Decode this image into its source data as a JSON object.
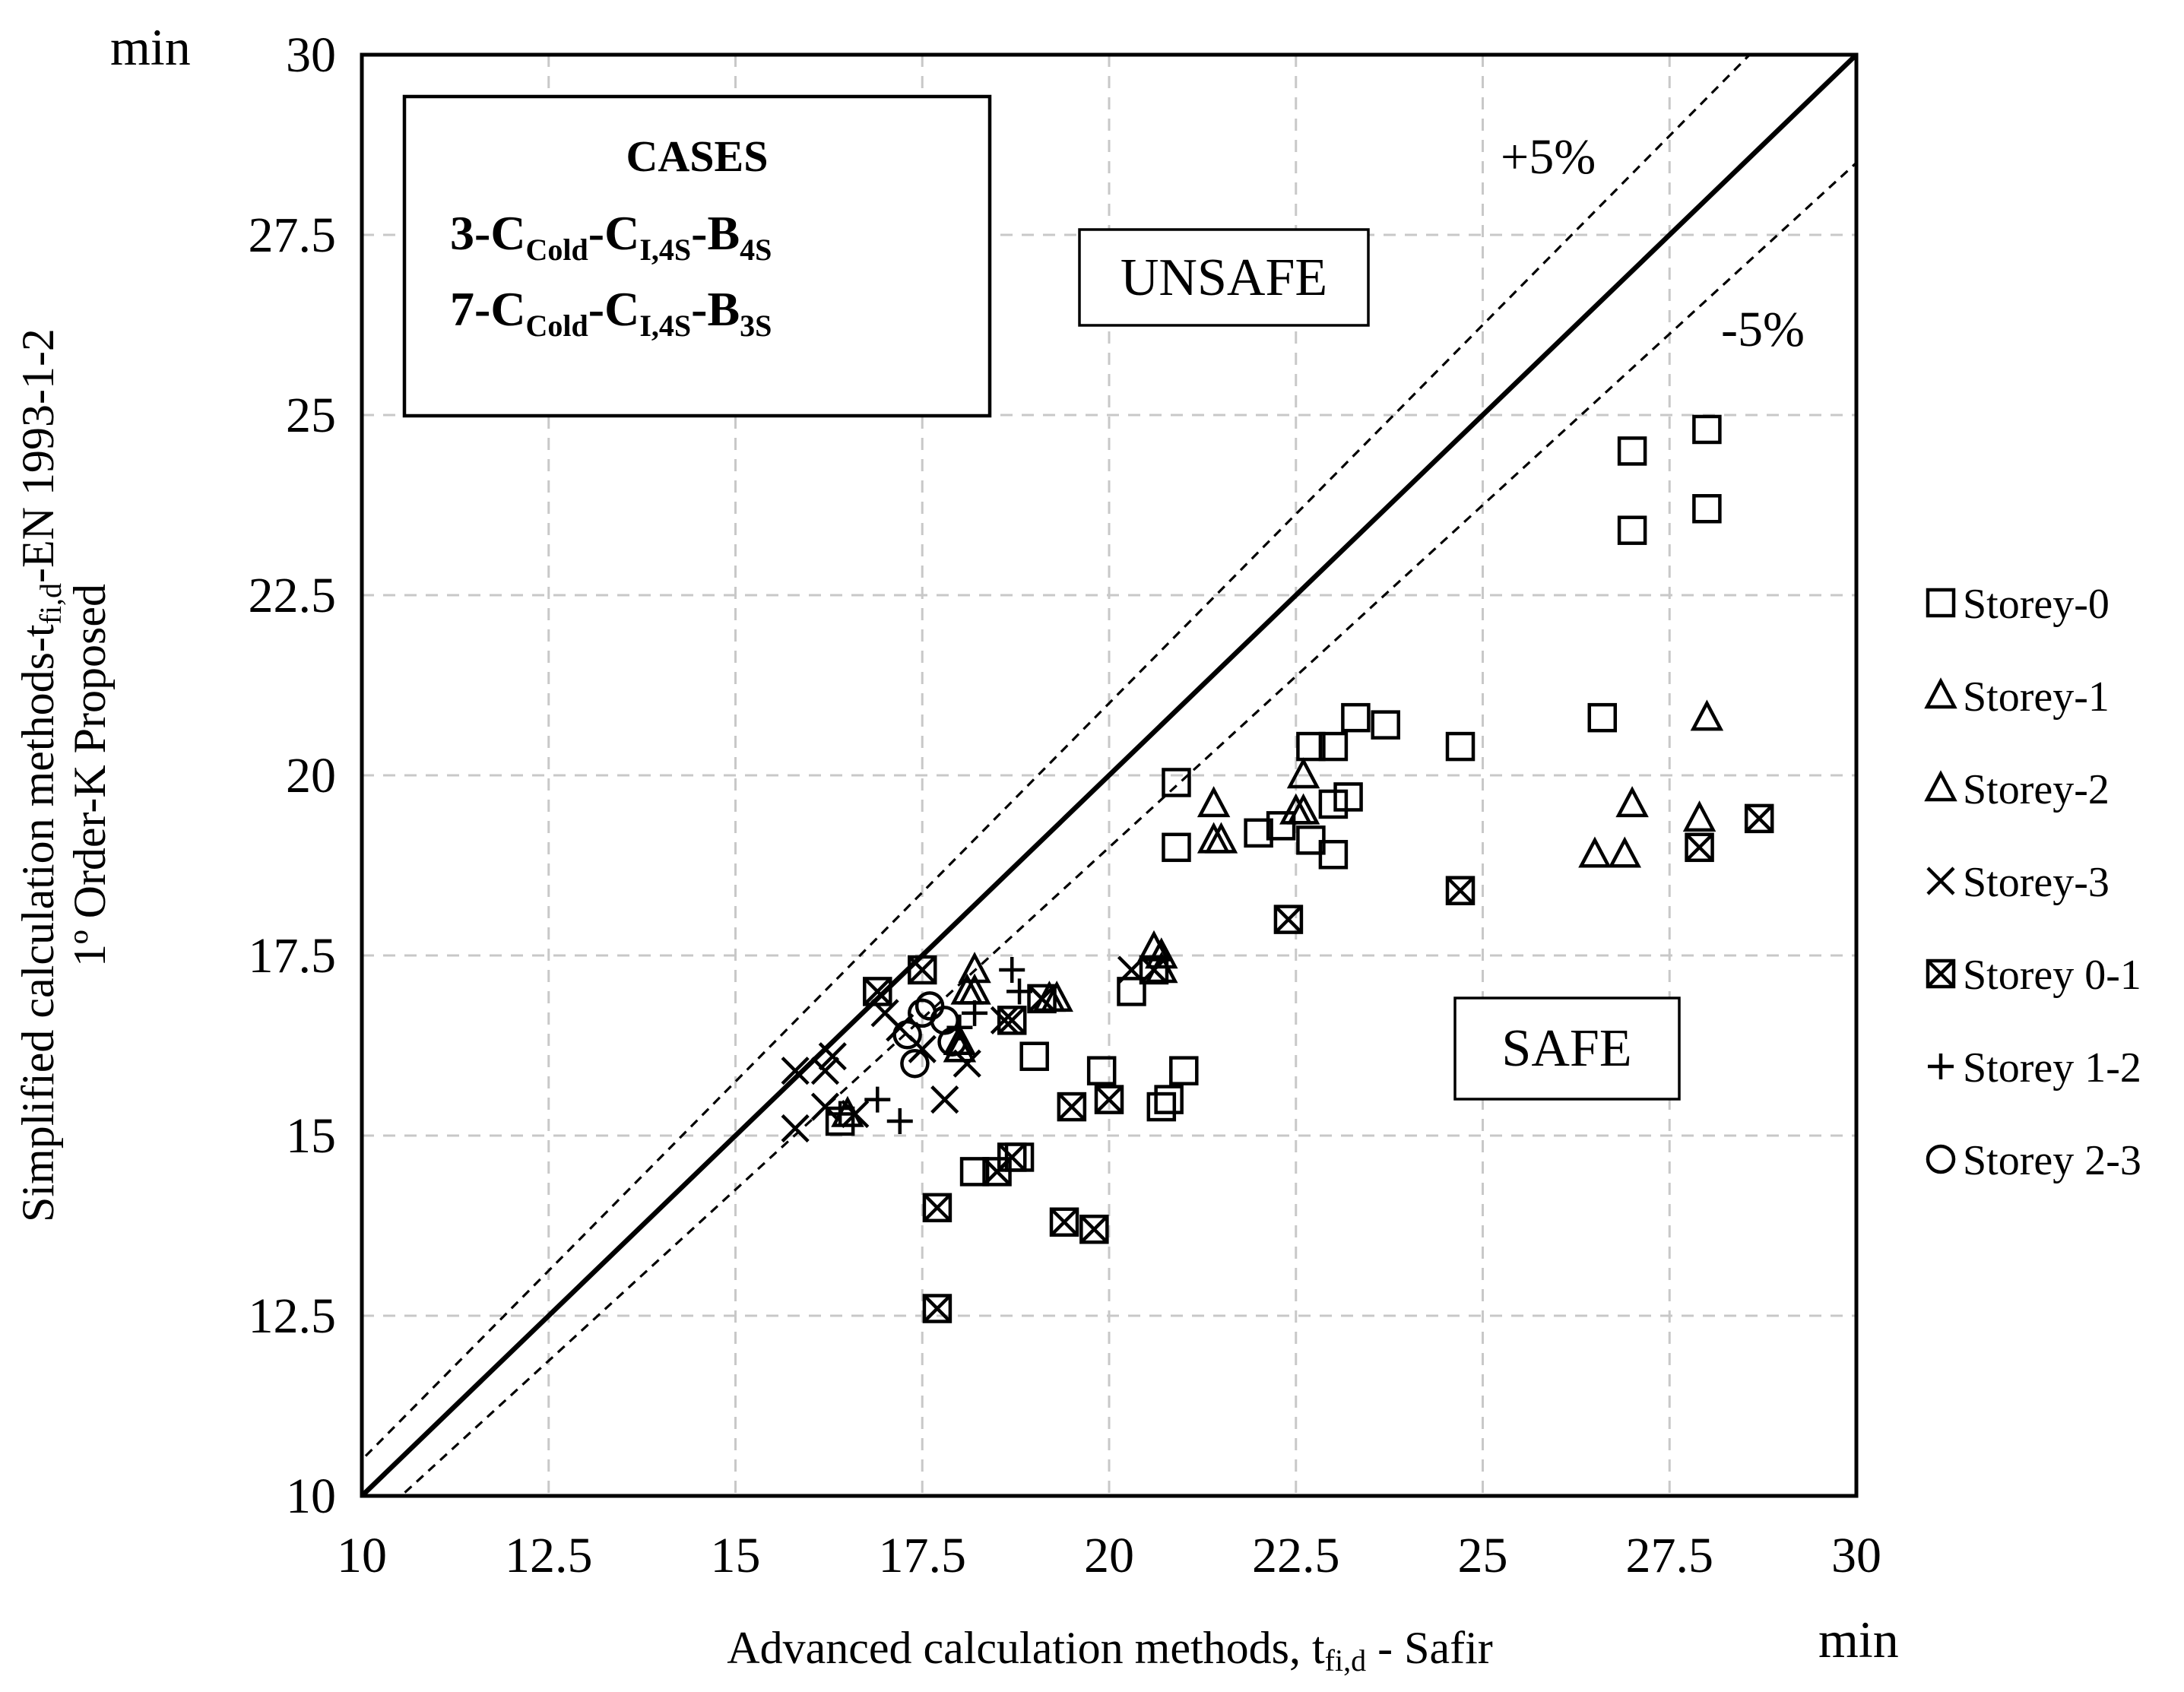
{
  "chart_data": {
    "type": "scatter",
    "title": "",
    "y_unit": "min",
    "x_unit": "min",
    "xlabel": "Advanced calculation methods, t",
    "xlabel_sub": "fi,d",
    "xlabel_suffix": " - Safir",
    "ylabel_line1_prefix": "Simplified calculation methods-t",
    "ylabel_line1_sub": "fi,d",
    "ylabel_line1_suffix": "-EN 1993-1-2",
    "ylabel_line2": "1º Order-K Proposed",
    "xlim": [
      10,
      30
    ],
    "ylim": [
      10,
      30
    ],
    "x_ticks": [
      "10",
      "12.5",
      "15",
      "17.5",
      "20",
      "22.5",
      "25",
      "27.5",
      "30"
    ],
    "y_ticks": [
      "10",
      "12.5",
      "15",
      "17.5",
      "20",
      "22.5",
      "25",
      "27.5",
      "30"
    ],
    "grid": true,
    "reference_lines": [
      {
        "label": "",
        "style": "solid",
        "slope": 1.0
      },
      {
        "label": "+5%",
        "style": "dashed",
        "slope": 1.05
      },
      {
        "label": "-5%",
        "style": "dashed",
        "slope": 0.95
      }
    ],
    "regions": {
      "upper": "UNSAFE",
      "lower": "SAFE"
    },
    "cases_box": {
      "title": "CASES",
      "lines": [
        {
          "p1": "3-C",
          "s1": "Cold",
          "p2": "-C",
          "s2": "I,4S",
          "p3": "-B",
          "s3": "4S"
        },
        {
          "p1": "7-C",
          "s1": "Cold",
          "p2": "-C",
          "s2": "I,4S",
          "p3": "-B",
          "s3": "3S"
        }
      ]
    },
    "series": [
      {
        "name": "Storey-0",
        "marker": "square",
        "points": [
          [
            28.0,
            24.8
          ],
          [
            27.0,
            24.5
          ],
          [
            28.0,
            23.7
          ],
          [
            27.0,
            23.4
          ],
          [
            23.3,
            20.8
          ],
          [
            23.7,
            20.7
          ],
          [
            26.6,
            20.8
          ],
          [
            22.7,
            20.4
          ],
          [
            23.0,
            20.4
          ],
          [
            24.7,
            20.4
          ],
          [
            20.9,
            19.9
          ],
          [
            23.2,
            19.7
          ],
          [
            23.0,
            19.6
          ],
          [
            22.0,
            19.2
          ],
          [
            22.3,
            19.3
          ],
          [
            22.7,
            19.1
          ],
          [
            20.9,
            19.0
          ],
          [
            23.0,
            18.9
          ],
          [
            20.3,
            17.0
          ],
          [
            19.0,
            16.1
          ],
          [
            19.9,
            15.9
          ],
          [
            21.0,
            15.9
          ],
          [
            20.8,
            15.5
          ],
          [
            20.7,
            15.4
          ],
          [
            18.8,
            14.7
          ],
          [
            18.2,
            14.5
          ],
          [
            16.4,
            15.2
          ]
        ]
      },
      {
        "name": "Storey-1",
        "marker": "triangle",
        "points": [
          [
            28.0,
            20.8
          ],
          [
            27.0,
            19.6
          ],
          [
            27.9,
            19.4
          ],
          [
            26.9,
            18.9
          ],
          [
            26.5,
            18.9
          ],
          [
            21.4,
            19.6
          ],
          [
            21.4,
            19.1
          ],
          [
            22.6,
            20.0
          ],
          [
            22.6,
            19.5
          ],
          [
            20.6,
            17.6
          ],
          [
            20.7,
            17.3
          ],
          [
            19.3,
            16.9
          ],
          [
            18.2,
            17.3
          ],
          [
            18.2,
            17.0
          ],
          [
            18.0,
            16.3
          ],
          [
            16.5,
            15.3
          ]
        ]
      },
      {
        "name": "Storey-2",
        "marker": "triangle",
        "points": [
          [
            22.5,
            19.5
          ],
          [
            21.5,
            19.1
          ],
          [
            20.7,
            17.5
          ],
          [
            19.2,
            16.9
          ],
          [
            18.1,
            17.0
          ],
          [
            18.0,
            16.2
          ]
        ]
      },
      {
        "name": "Storey-3",
        "marker": "x",
        "points": [
          [
            15.8,
            15.9
          ],
          [
            15.8,
            15.1
          ],
          [
            16.2,
            15.9
          ],
          [
            16.3,
            16.1
          ],
          [
            16.2,
            15.4
          ],
          [
            16.6,
            15.3
          ],
          [
            17.0,
            16.7
          ],
          [
            17.2,
            16.5
          ],
          [
            17.5,
            16.2
          ],
          [
            17.8,
            15.5
          ],
          [
            18.1,
            16.0
          ],
          [
            18.6,
            16.6
          ],
          [
            19.1,
            16.9
          ],
          [
            20.3,
            17.3
          ]
        ]
      },
      {
        "name": "Storey 0-1",
        "marker": "x-square",
        "points": [
          [
            28.7,
            19.4
          ],
          [
            27.9,
            19.0
          ],
          [
            24.7,
            18.4
          ],
          [
            22.4,
            18.0
          ],
          [
            20.6,
            17.3
          ],
          [
            19.1,
            16.9
          ],
          [
            18.7,
            16.6
          ],
          [
            16.9,
            17.0
          ],
          [
            17.5,
            17.3
          ],
          [
            19.5,
            15.4
          ],
          [
            20.0,
            15.5
          ],
          [
            18.5,
            14.5
          ],
          [
            18.7,
            14.7
          ],
          [
            17.7,
            14.0
          ],
          [
            19.4,
            13.8
          ],
          [
            19.8,
            13.7
          ],
          [
            17.7,
            12.6
          ]
        ]
      },
      {
        "name": "Storey 1-2",
        "marker": "plus",
        "points": [
          [
            18.7,
            17.3
          ],
          [
            18.8,
            17.0
          ],
          [
            18.2,
            16.7
          ],
          [
            18.0,
            16.5
          ],
          [
            16.4,
            15.3
          ],
          [
            16.9,
            15.5
          ],
          [
            17.2,
            15.2
          ]
        ]
      },
      {
        "name": "Storey 2-3",
        "marker": "circle",
        "points": [
          [
            17.5,
            16.7
          ],
          [
            17.8,
            16.6
          ],
          [
            17.9,
            16.3
          ],
          [
            17.3,
            16.4
          ],
          [
            17.6,
            16.8
          ],
          [
            17.4,
            16.0
          ]
        ]
      }
    ]
  }
}
